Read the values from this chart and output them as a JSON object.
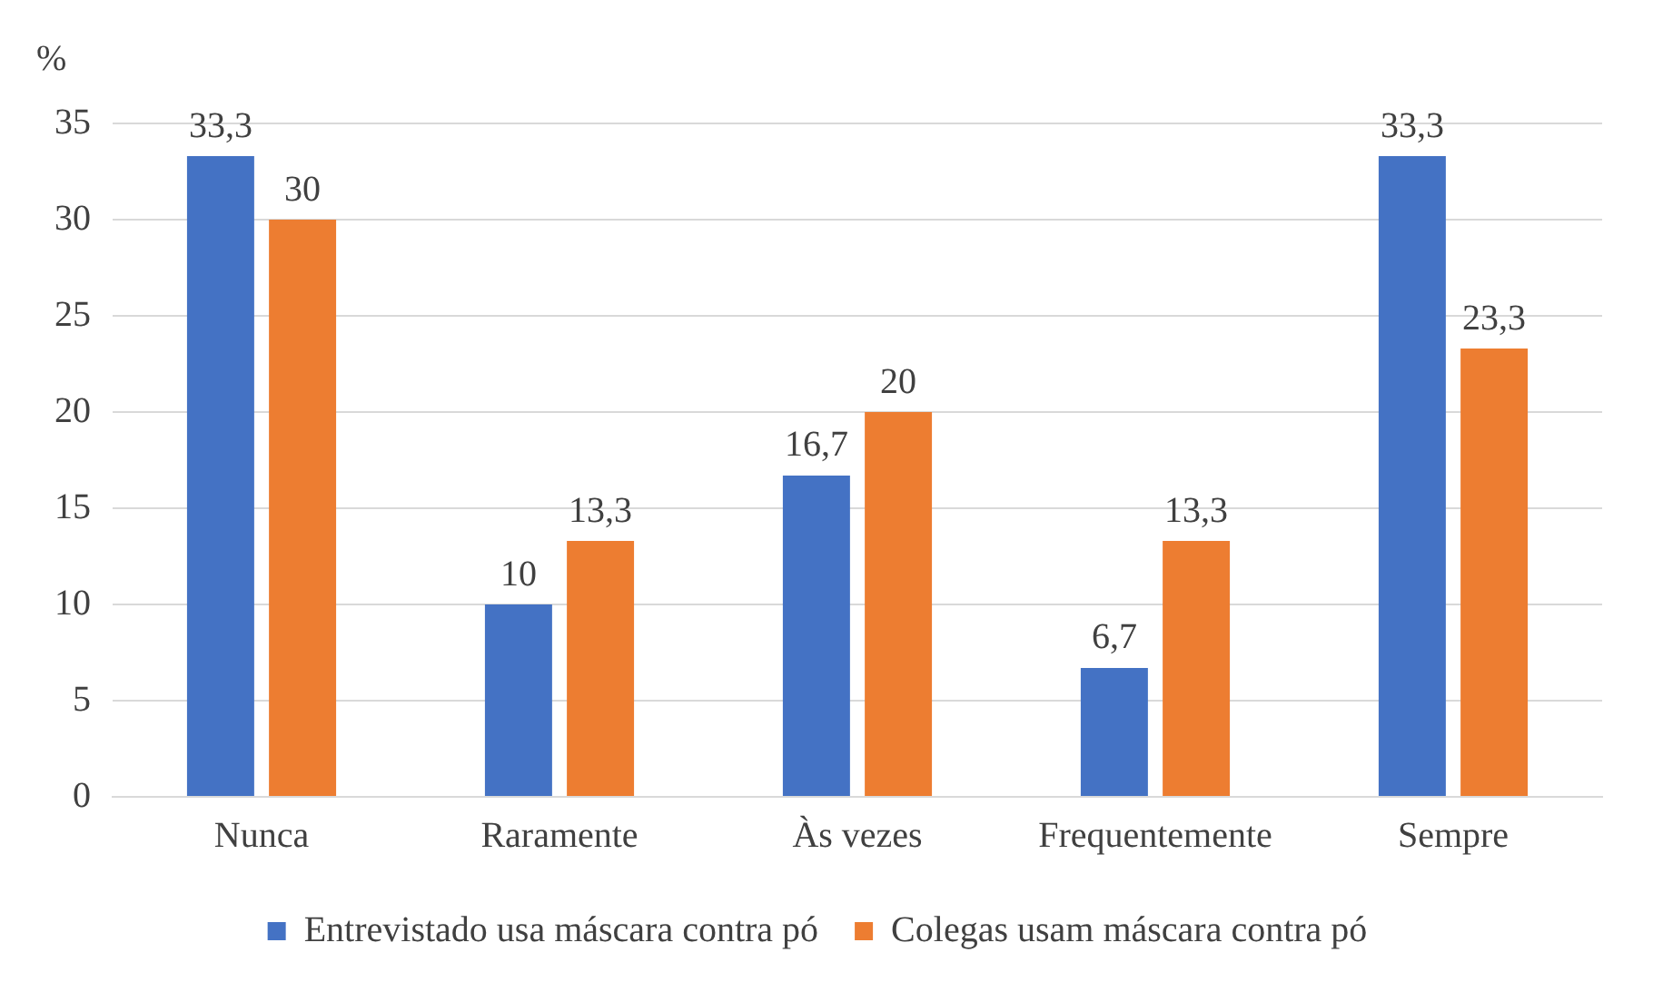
{
  "chart_data": {
    "type": "bar",
    "ylabel": "%",
    "categories": [
      "Nunca",
      "Raramente",
      "Às vezes",
      "Frequentemente",
      "Sempre"
    ],
    "series": [
      {
        "name": "Entrevistado usa máscara contra pó",
        "color": "#4472c4",
        "values": [
          33.3,
          10,
          16.7,
          6.7,
          33.3
        ],
        "value_labels": [
          "33,3",
          "10",
          "16,7",
          "6,7",
          "33,3"
        ]
      },
      {
        "name": "Colegas usam máscara contra pó",
        "color": "#ed7d31",
        "values": [
          30,
          13.3,
          20,
          13.3,
          23.3
        ],
        "value_labels": [
          "30",
          "13,3",
          "20",
          "13,3",
          "23,3"
        ]
      }
    ],
    "ylim": [
      0,
      35
    ],
    "yticks": [
      0,
      5,
      10,
      15,
      20,
      25,
      30,
      35
    ],
    "grid": "y",
    "legend": "bottom"
  }
}
